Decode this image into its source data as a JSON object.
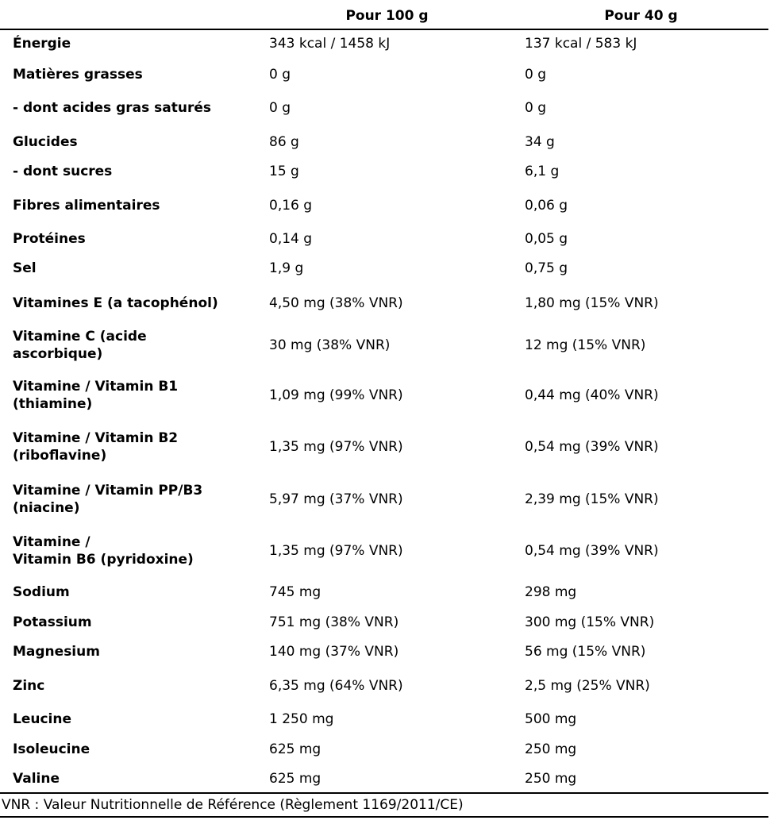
{
  "header": {
    "col_100g": "Pour 100 g",
    "col_40g": "Pour 40 g"
  },
  "rows": [
    {
      "label": "Énergie",
      "v100": "343 kcal / 1458 kJ",
      "v40": "137 kcal / 583 kJ"
    },
    {
      "label": "Matières grasses",
      "v100": "0 g",
      "v40": "0 g"
    },
    {
      "label": "- dont acides gras saturés",
      "v100": "0 g",
      "v40": "0 g"
    },
    {
      "label": "Glucides",
      "v100": "86 g",
      "v40": "34 g"
    },
    {
      "label": "- dont sucres",
      "v100": "15 g",
      "v40": "6,1 g"
    },
    {
      "label": "Fibres alimentaires",
      "v100": "0,16 g",
      "v40": "0,06 g"
    },
    {
      "label": "Protéines",
      "v100": "0,14 g",
      "v40": "0,05 g"
    },
    {
      "label": "Sel",
      "v100": "1,9 g",
      "v40": "0,75 g"
    },
    {
      "label": "Vitamines E (a tacophénol)",
      "v100": "4,50 mg (38% VNR)",
      "v40": "1,80 mg (15% VNR)"
    },
    {
      "label": "Vitamine C (acide\nascorbique)",
      "v100": "30 mg (38% VNR)",
      "v40": "12 mg (15% VNR)"
    },
    {
      "label": "Vitamine / Vitamin B1\n(thiamine)",
      "v100": "1,09 mg (99% VNR)",
      "v40": "0,44 mg (40% VNR)"
    },
    {
      "label": "Vitamine / Vitamin B2\n(riboflavine)",
      "v100": "1,35 mg (97% VNR)",
      "v40": "0,54 mg (39% VNR)"
    },
    {
      "label": "Vitamine / Vitamin PP/B3\n(niacine)",
      "v100": "5,97 mg (37% VNR)",
      "v40": "2,39 mg (15% VNR)"
    },
    {
      "label": "Vitamine /\nVitamin B6 (pyridoxine)",
      "v100": "1,35 mg (97% VNR)",
      "v40": "0,54 mg (39% VNR)"
    },
    {
      "label": "Sodium",
      "v100": "745 mg",
      "v40": "298 mg"
    },
    {
      "label": "Potassium",
      "v100": "751 mg (38% VNR)",
      "v40": "300 mg (15% VNR)"
    },
    {
      "label": "Magnesium",
      "v100": "140 mg (37% VNR)",
      "v40": "56 mg (15% VNR)"
    },
    {
      "label": "Zinc",
      "v100": "6,35 mg (64% VNR)",
      "v40": "2,5 mg (25% VNR)"
    },
    {
      "label": "Leucine",
      "v100": "1 250 mg",
      "v40": "500 mg"
    },
    {
      "label": "Isoleucine",
      "v100": "625 mg",
      "v40": "250 mg"
    },
    {
      "label": "Valine",
      "v100": "625 mg",
      "v40": "250 mg"
    }
  ],
  "footnote": "VNR : Valeur Nutritionnelle de Référence (Règlement 1169/2011/CE)"
}
